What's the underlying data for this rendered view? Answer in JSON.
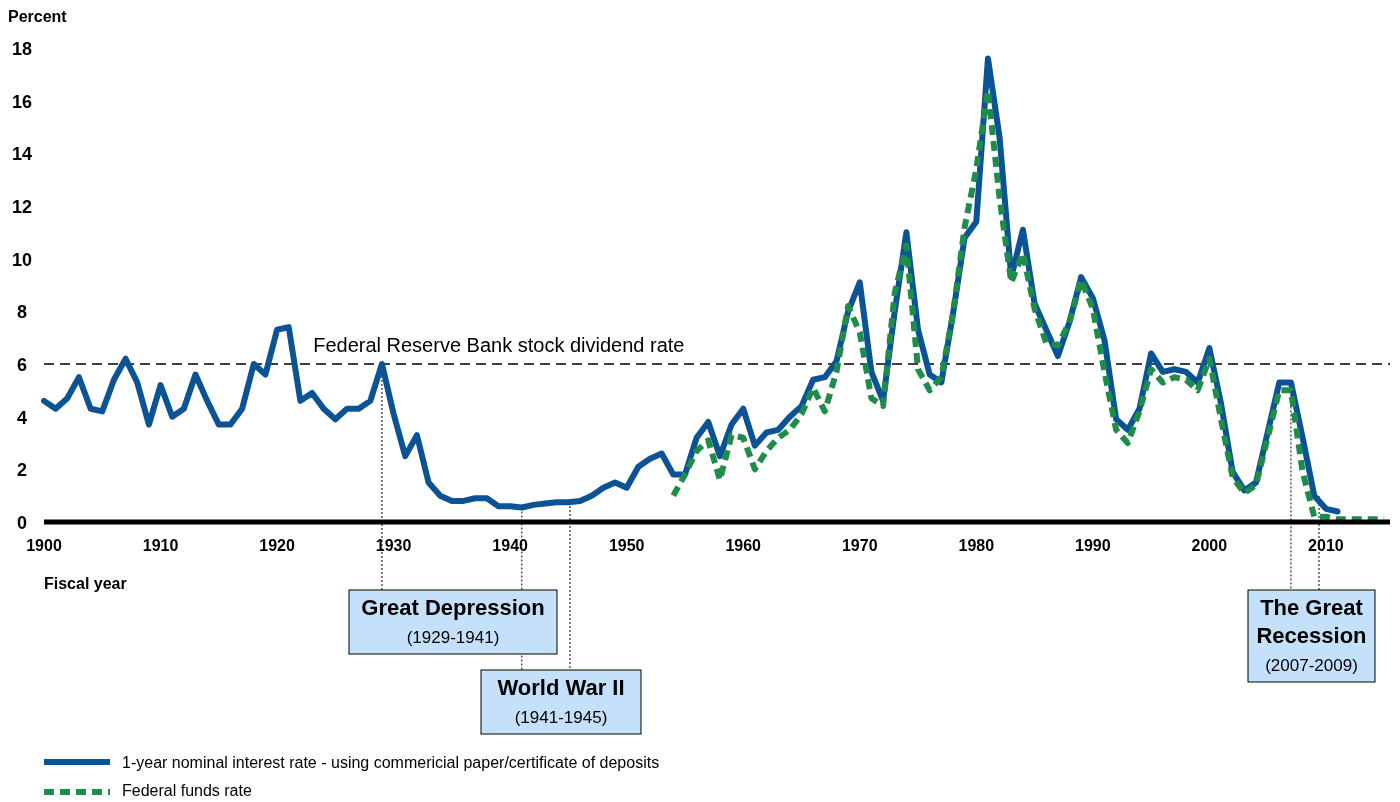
{
  "chart_data": {
    "type": "line",
    "ylabel": "Percent",
    "xlabel": "Fiscal year",
    "xlim": [
      1900,
      2015.5
    ],
    "ylim": [
      0,
      18
    ],
    "xticks": [
      1900,
      1910,
      1920,
      1930,
      1940,
      1950,
      1960,
      1970,
      1980,
      1990,
      2000,
      2010
    ],
    "yticks": [
      0,
      2,
      4,
      6,
      8,
      10,
      12,
      14,
      16,
      18
    ],
    "grid": false,
    "legend": "bottom left",
    "marker": "none",
    "series": [
      {
        "name": "1-year nominal interest rate - using commericial paper/certificate of deposits",
        "color": "#0b5394",
        "line_style": "solid",
        "x": [
          1900,
          1901,
          1902,
          1903,
          1904,
          1905,
          1906,
          1907,
          1908,
          1909,
          1910,
          1911,
          1912,
          1913,
          1914,
          1915,
          1916,
          1917,
          1918,
          1919,
          1920,
          1921,
          1922,
          1923,
          1924,
          1925,
          1926,
          1927,
          1928,
          1929,
          1930,
          1931,
          1932,
          1933,
          1934,
          1935,
          1936,
          1937,
          1938,
          1939,
          1940,
          1941,
          1942,
          1943,
          1944,
          1945,
          1946,
          1947,
          1948,
          1949,
          1950,
          1951,
          1952,
          1953,
          1954,
          1955,
          1956,
          1957,
          1958,
          1959,
          1960,
          1961,
          1962,
          1963,
          1964,
          1965,
          1966,
          1967,
          1968,
          1969,
          1970,
          1971,
          1972,
          1973,
          1974,
          1975,
          1976,
          1977,
          1978,
          1979,
          1980,
          1981,
          1982,
          1983,
          1984,
          1985,
          1986,
          1987,
          1988,
          1989,
          1990,
          1991,
          1992,
          1993,
          1994,
          1995,
          1996,
          1997,
          1998,
          1999,
          2000,
          2001,
          2002,
          2003,
          2004,
          2005,
          2006,
          2007,
          2008,
          2009,
          2010,
          2011
        ],
        "values": [
          4.6,
          4.3,
          4.7,
          5.5,
          4.3,
          4.2,
          5.4,
          6.2,
          5.3,
          3.7,
          5.2,
          4.0,
          4.3,
          5.6,
          4.6,
          3.7,
          3.7,
          4.3,
          6.0,
          5.6,
          7.3,
          7.4,
          4.6,
          4.9,
          4.3,
          3.9,
          4.3,
          4.3,
          4.6,
          6.0,
          4.1,
          2.5,
          3.3,
          1.5,
          1.0,
          0.8,
          0.8,
          0.9,
          0.9,
          0.6,
          0.6,
          0.55,
          0.65,
          0.7,
          0.75,
          0.75,
          0.8,
          1.0,
          1.3,
          1.5,
          1.3,
          2.1,
          2.4,
          2.6,
          1.8,
          1.8,
          3.2,
          3.8,
          2.5,
          3.7,
          4.3,
          2.9,
          3.4,
          3.5,
          4.0,
          4.4,
          5.4,
          5.5,
          6.1,
          8.0,
          9.1,
          5.7,
          4.6,
          8.0,
          11.0,
          7.3,
          5.6,
          5.3,
          7.9,
          10.8,
          11.4,
          17.6,
          14.6,
          9.3,
          11.1,
          8.3,
          7.3,
          6.3,
          7.6,
          9.3,
          8.5,
          6.9,
          3.9,
          3.5,
          4.3,
          6.4,
          5.7,
          5.8,
          5.7,
          5.3,
          6.6,
          4.5,
          1.9,
          1.2,
          1.5,
          3.4,
          5.3,
          5.3,
          3.2,
          1.0,
          0.5,
          0.4
        ]
      },
      {
        "name": "Federal funds rate",
        "color": "#1e8c4a",
        "line_style": "dashed",
        "x": [
          1954,
          1955,
          1956,
          1957,
          1958,
          1959,
          1960,
          1961,
          1962,
          1963,
          1964,
          1965,
          1966,
          1967,
          1968,
          1969,
          1970,
          1971,
          1972,
          1973,
          1974,
          1975,
          1976,
          1977,
          1978,
          1979,
          1980,
          1981,
          1982,
          1983,
          1984,
          1985,
          1986,
          1987,
          1988,
          1989,
          1990,
          1991,
          1992,
          1993,
          1994,
          1995,
          1996,
          1997,
          1998,
          1999,
          2000,
          2001,
          2002,
          2003,
          2004,
          2005,
          2006,
          2007,
          2008,
          2009,
          2010,
          2011,
          2012,
          2013,
          2014,
          2015
        ],
        "values": [
          1.0,
          1.8,
          2.7,
          3.1,
          1.6,
          3.3,
          3.2,
          2.0,
          2.7,
          3.2,
          3.5,
          4.1,
          5.1,
          4.2,
          5.7,
          8.2,
          7.2,
          4.7,
          4.4,
          8.7,
          10.5,
          5.8,
          5.0,
          5.5,
          7.9,
          11.2,
          13.4,
          16.4,
          12.3,
          9.1,
          10.2,
          8.1,
          6.8,
          6.7,
          7.6,
          9.2,
          8.1,
          5.7,
          3.5,
          3.0,
          4.2,
          5.8,
          5.3,
          5.5,
          5.4,
          5.0,
          6.2,
          3.9,
          1.7,
          1.1,
          1.4,
          3.2,
          5.0,
          5.0,
          1.9,
          0.2,
          0.2,
          0.1,
          0.1,
          0.1,
          0.1,
          0.1
        ]
      }
    ],
    "ref_lines": [
      {
        "axis": "y",
        "value": 6,
        "label": "Federal Reserve Bank stock dividend rate",
        "color": "#000000",
        "line_style": "dashed"
      }
    ],
    "annotations": [
      {
        "text": "Great Depression\n(1929-1941)",
        "x": 1929,
        "y": 6.0
      },
      {
        "text": "World War II\n(1941-1945)",
        "x": 1941,
        "y": 0.55
      },
      {
        "text": "The Great\nRecession\n(2007-2009)",
        "x": 2007,
        "y": 5.3
      }
    ]
  }
}
